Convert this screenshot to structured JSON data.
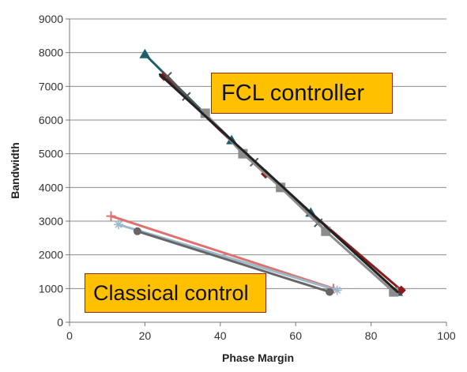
{
  "chart_data": {
    "type": "line",
    "xlabel": "Phase Margin",
    "ylabel": "Bandwidth",
    "xlim": [
      0,
      100
    ],
    "ylim": [
      0,
      9000
    ],
    "x_ticks": [
      0,
      20,
      40,
      60,
      80,
      100
    ],
    "y_ticks": [
      0,
      1000,
      2000,
      3000,
      4000,
      5000,
      6000,
      7000,
      8000,
      9000
    ],
    "grid": "horizontal",
    "annotations": [
      {
        "id": "fcl",
        "text": "FCL controller"
      },
      {
        "id": "classical",
        "text": "Classical control"
      }
    ],
    "series": [
      {
        "color": "#1F5F6B",
        "marker": "triangle",
        "points": [
          [
            20,
            7950
          ],
          [
            43,
            5400
          ],
          [
            64,
            3250
          ],
          [
            87,
            900
          ]
        ]
      },
      {
        "color": "#8B1A1A",
        "marker": "diamond",
        "points": [
          [
            25,
            7300
          ],
          [
            52,
            4400
          ],
          [
            88,
            950
          ]
        ]
      },
      {
        "color": "#555555",
        "marker": "x",
        "points": [
          [
            26,
            7300
          ],
          [
            31,
            6700
          ],
          [
            49,
            4750
          ],
          [
            66,
            2950
          ]
        ]
      },
      {
        "color": "#8C8C8C",
        "marker": "square",
        "points": [
          [
            36,
            6200
          ],
          [
            46,
            5000
          ],
          [
            56,
            4000
          ],
          [
            68,
            2700
          ],
          [
            86,
            900
          ]
        ]
      },
      {
        "color": "#222222",
        "marker": "none",
        "points": [
          [
            24,
            7350
          ],
          [
            87,
            900
          ]
        ]
      },
      {
        "color": "#E07070",
        "marker": "plus",
        "points": [
          [
            11,
            3150
          ],
          [
            70,
            1000
          ]
        ]
      },
      {
        "color": "#9DB9C9",
        "marker": "asterisk",
        "points": [
          [
            13,
            2900
          ],
          [
            71,
            950
          ]
        ]
      },
      {
        "color": "#666666",
        "marker": "circle",
        "points": [
          [
            18,
            2700
          ],
          [
            69,
            900
          ]
        ]
      }
    ]
  }
}
